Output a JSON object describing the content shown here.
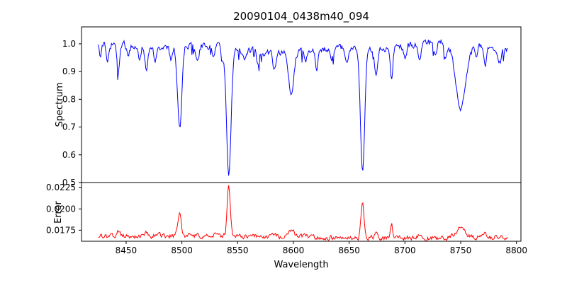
{
  "chart_data": {
    "type": "line",
    "title": "20090104_0438m40_094",
    "xlabel": "Wavelength",
    "seed": 20090104,
    "x_axis": {
      "min": 8410,
      "max": 8804,
      "data_min": 8425,
      "data_max": 8792,
      "step": 0.7,
      "tick_values": [
        8450,
        8500,
        8550,
        8600,
        8650,
        8700,
        8750,
        8800
      ],
      "tick_labels": [
        "8450",
        "8500",
        "8550",
        "8600",
        "8650",
        "8700",
        "8750",
        "8800"
      ]
    },
    "panels": [
      {
        "name": "spectrum",
        "ylabel": "Spectrum",
        "color": "#0000ff",
        "ylim": [
          0.5,
          1.061
        ],
        "tick_values": [
          0.5,
          0.6,
          0.7,
          0.8,
          0.9,
          1.0
        ],
        "tick_labels": [
          "0.5",
          "0.6",
          "0.7",
          "0.8",
          "0.9",
          "1.0"
        ],
        "continuum": 0.985,
        "noise": 0.022,
        "absorption_lines": [
          [
            8427,
            0.05,
            1.2
          ],
          [
            8433,
            0.06,
            1.3
          ],
          [
            8443,
            0.11,
            1.2
          ],
          [
            8452,
            0.05,
            1.2
          ],
          [
            8462,
            0.05,
            1.2
          ],
          [
            8468,
            0.08,
            1.4
          ],
          [
            8476,
            0.04,
            1.2
          ],
          [
            8490,
            0.05,
            1.2
          ],
          [
            8498,
            0.3,
            1.9
          ],
          [
            8514,
            0.06,
            1.4
          ],
          [
            8528,
            0.04,
            1.2
          ],
          [
            8536,
            0.05,
            1.2
          ],
          [
            8542,
            0.47,
            2.0
          ],
          [
            8556,
            0.04,
            1.2
          ],
          [
            8568,
            0.04,
            1.2
          ],
          [
            8583,
            0.06,
            1.3
          ],
          [
            8598,
            0.15,
            2.2
          ],
          [
            8611,
            0.05,
            1.2
          ],
          [
            8621,
            0.07,
            1.3
          ],
          [
            8634,
            0.04,
            1.2
          ],
          [
            8648,
            0.05,
            1.2
          ],
          [
            8662,
            0.44,
            1.9
          ],
          [
            8674,
            0.09,
            1.3
          ],
          [
            8688,
            0.12,
            1.1
          ],
          [
            8700,
            0.04,
            1.2
          ],
          [
            8713,
            0.06,
            1.3
          ],
          [
            8727,
            0.05,
            1.2
          ],
          [
            8736,
            0.05,
            1.2
          ],
          [
            8750,
            0.23,
            4.5
          ],
          [
            8764,
            0.05,
            1.2
          ],
          [
            8772,
            0.06,
            1.3
          ],
          [
            8785,
            0.04,
            1.2
          ]
        ]
      },
      {
        "name": "error",
        "ylabel": "Error",
        "color": "#ff0000",
        "ylim": [
          0.0162,
          0.0231
        ],
        "tick_values": [
          0.0175,
          0.02,
          0.0225
        ],
        "tick_labels": [
          "0.0175",
          "0.0200",
          "0.0225"
        ],
        "baseline": 0.01672,
        "noise": 0.0005,
        "spikes": [
          [
            8443,
            0.0006,
            1.2
          ],
          [
            8468,
            0.0005,
            1.2
          ],
          [
            8498,
            0.0029,
            1.4
          ],
          [
            8542,
            0.006,
            1.4
          ],
          [
            8598,
            0.0009,
            2.4
          ],
          [
            8662,
            0.004,
            1.4
          ],
          [
            8674,
            0.0006,
            1.2
          ],
          [
            8688,
            0.0017,
            0.9
          ],
          [
            8713,
            0.0004,
            1.2
          ],
          [
            8750,
            0.0013,
            4.0
          ],
          [
            8772,
            0.0005,
            1.5
          ]
        ]
      }
    ]
  }
}
